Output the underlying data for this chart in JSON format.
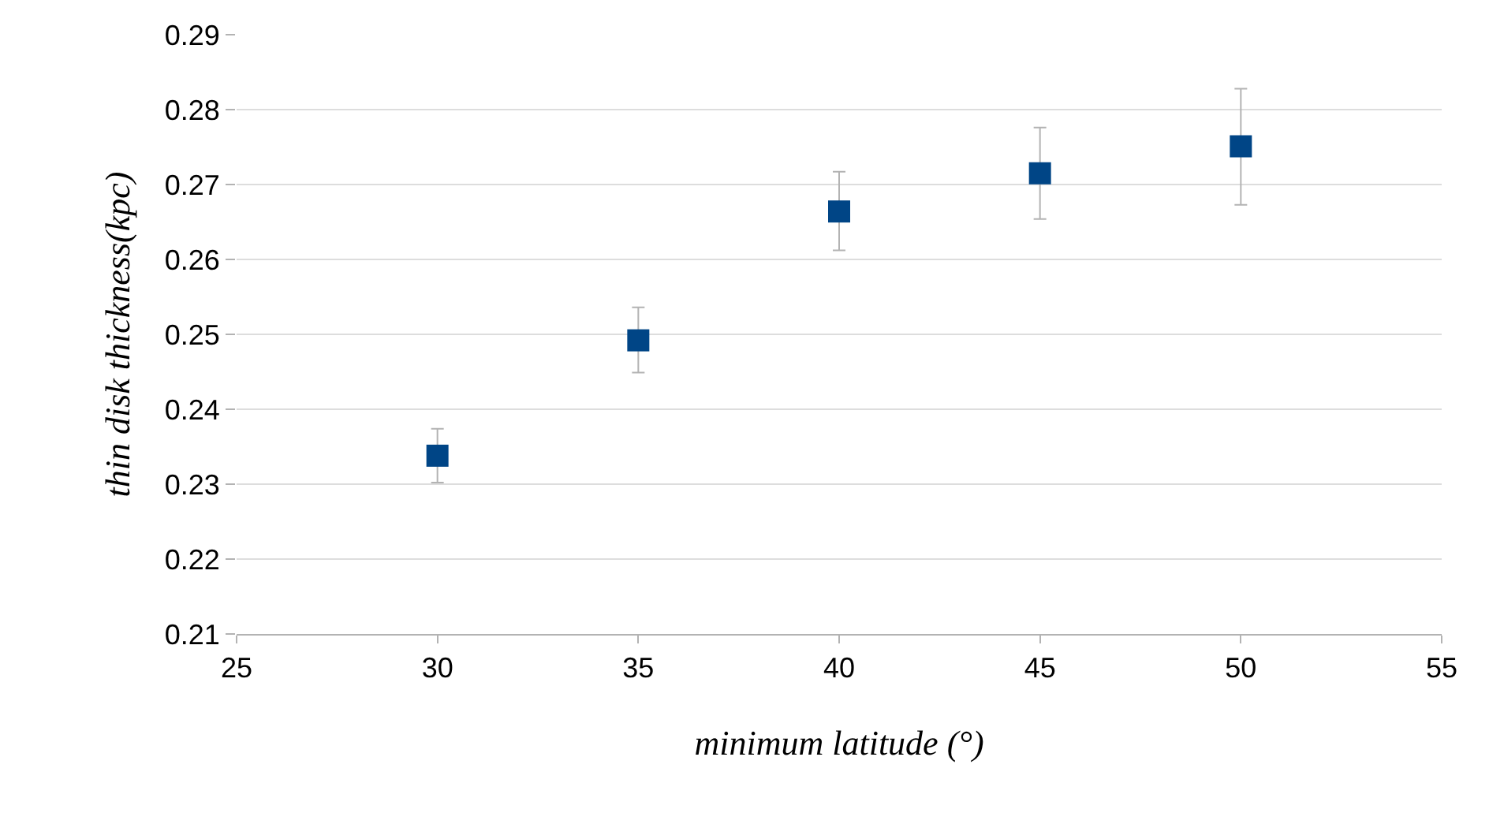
{
  "chart_data": {
    "type": "scatter",
    "xlabel": "minimum latitude (°)",
    "ylabel": "thin disk thickness(kpc)",
    "x": [
      30,
      35,
      40,
      45,
      50
    ],
    "series": [
      {
        "color": "#004586",
        "values": [
          0.2338,
          0.2492,
          0.2664,
          0.2715,
          0.2751
        ],
        "errors": [
          [
            0.2302,
            0.2374
          ],
          [
            0.2449,
            0.2536
          ],
          [
            0.2612,
            0.2717
          ],
          [
            0.2654,
            0.2776
          ],
          [
            0.2673,
            0.2828
          ]
        ]
      }
    ],
    "xlim": [
      25,
      55
    ],
    "xticks": [
      25,
      30,
      35,
      40,
      45,
      50,
      55
    ],
    "ylim": [
      0.21,
      0.29
    ],
    "yticks": [
      0.21,
      0.22,
      0.23,
      0.24,
      0.25,
      0.26,
      0.27,
      0.28,
      0.29
    ],
    "grid": "y",
    "marker": "square",
    "legend": false
  }
}
